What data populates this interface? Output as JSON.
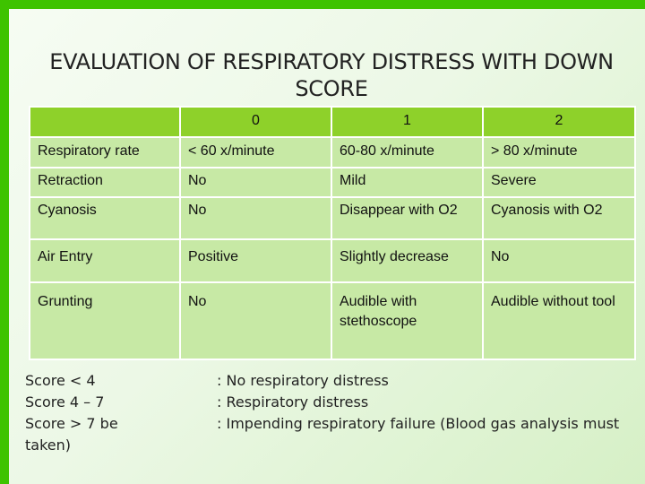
{
  "title": "EVALUATION OF RESPIRATORY DISTRESS WITH DOWN SCORE",
  "table": {
    "headers": [
      "",
      "0",
      "1",
      "2"
    ],
    "rows": [
      [
        "Respiratory rate",
        "< 60 x/minute",
        "60-80 x/minute",
        "> 80 x/minute"
      ],
      [
        "Retraction",
        "No",
        "Mild",
        "Severe"
      ],
      [
        "Cyanosis",
        "No",
        "Disappear with O2",
        "Cyanosis with O2"
      ],
      [
        "Air Entry",
        "Positive",
        "Slightly decrease",
        "No"
      ],
      [
        "Grunting",
        "No",
        "Audible with stethoscope",
        "Audible without tool"
      ]
    ]
  },
  "scores": [
    {
      "label": "Score < 4",
      "meaning": ": No respiratory distress"
    },
    {
      "label": "Score 4 – 7",
      "meaning": ": Respiratory distress"
    },
    {
      "label": "Score > 7 be taken)",
      "meaning": ": Impending respiratory failure (Blood gas analysis must"
    }
  ],
  "colors": {
    "frame": "#3ec300",
    "header_row": "#8ed12a",
    "body_rows": "#c7e9a5"
  }
}
